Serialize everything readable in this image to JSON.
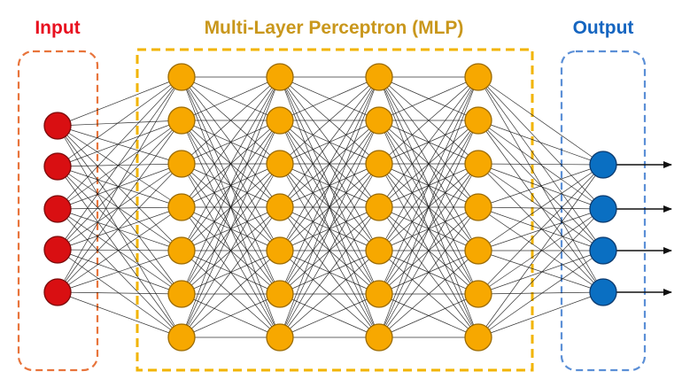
{
  "labels": {
    "input": "Input",
    "hidden": "Multi-Layer Perceptron (MLP)",
    "output": "Output"
  },
  "colors": {
    "input_text": "#e8101f",
    "input_node": "#d90f12",
    "input_box": "#e8743b",
    "hidden_text": "#c9971c",
    "hidden_node": "#f7a800",
    "hidden_box": "#f2b400",
    "output_text": "#1565c0",
    "output_node": "#0a6fc2",
    "output_box": "#5b8fd6",
    "edge": "#111111"
  },
  "network": {
    "layer_sizes": [
      5,
      7,
      7,
      7,
      7,
      4
    ],
    "output_arrows": 4
  }
}
